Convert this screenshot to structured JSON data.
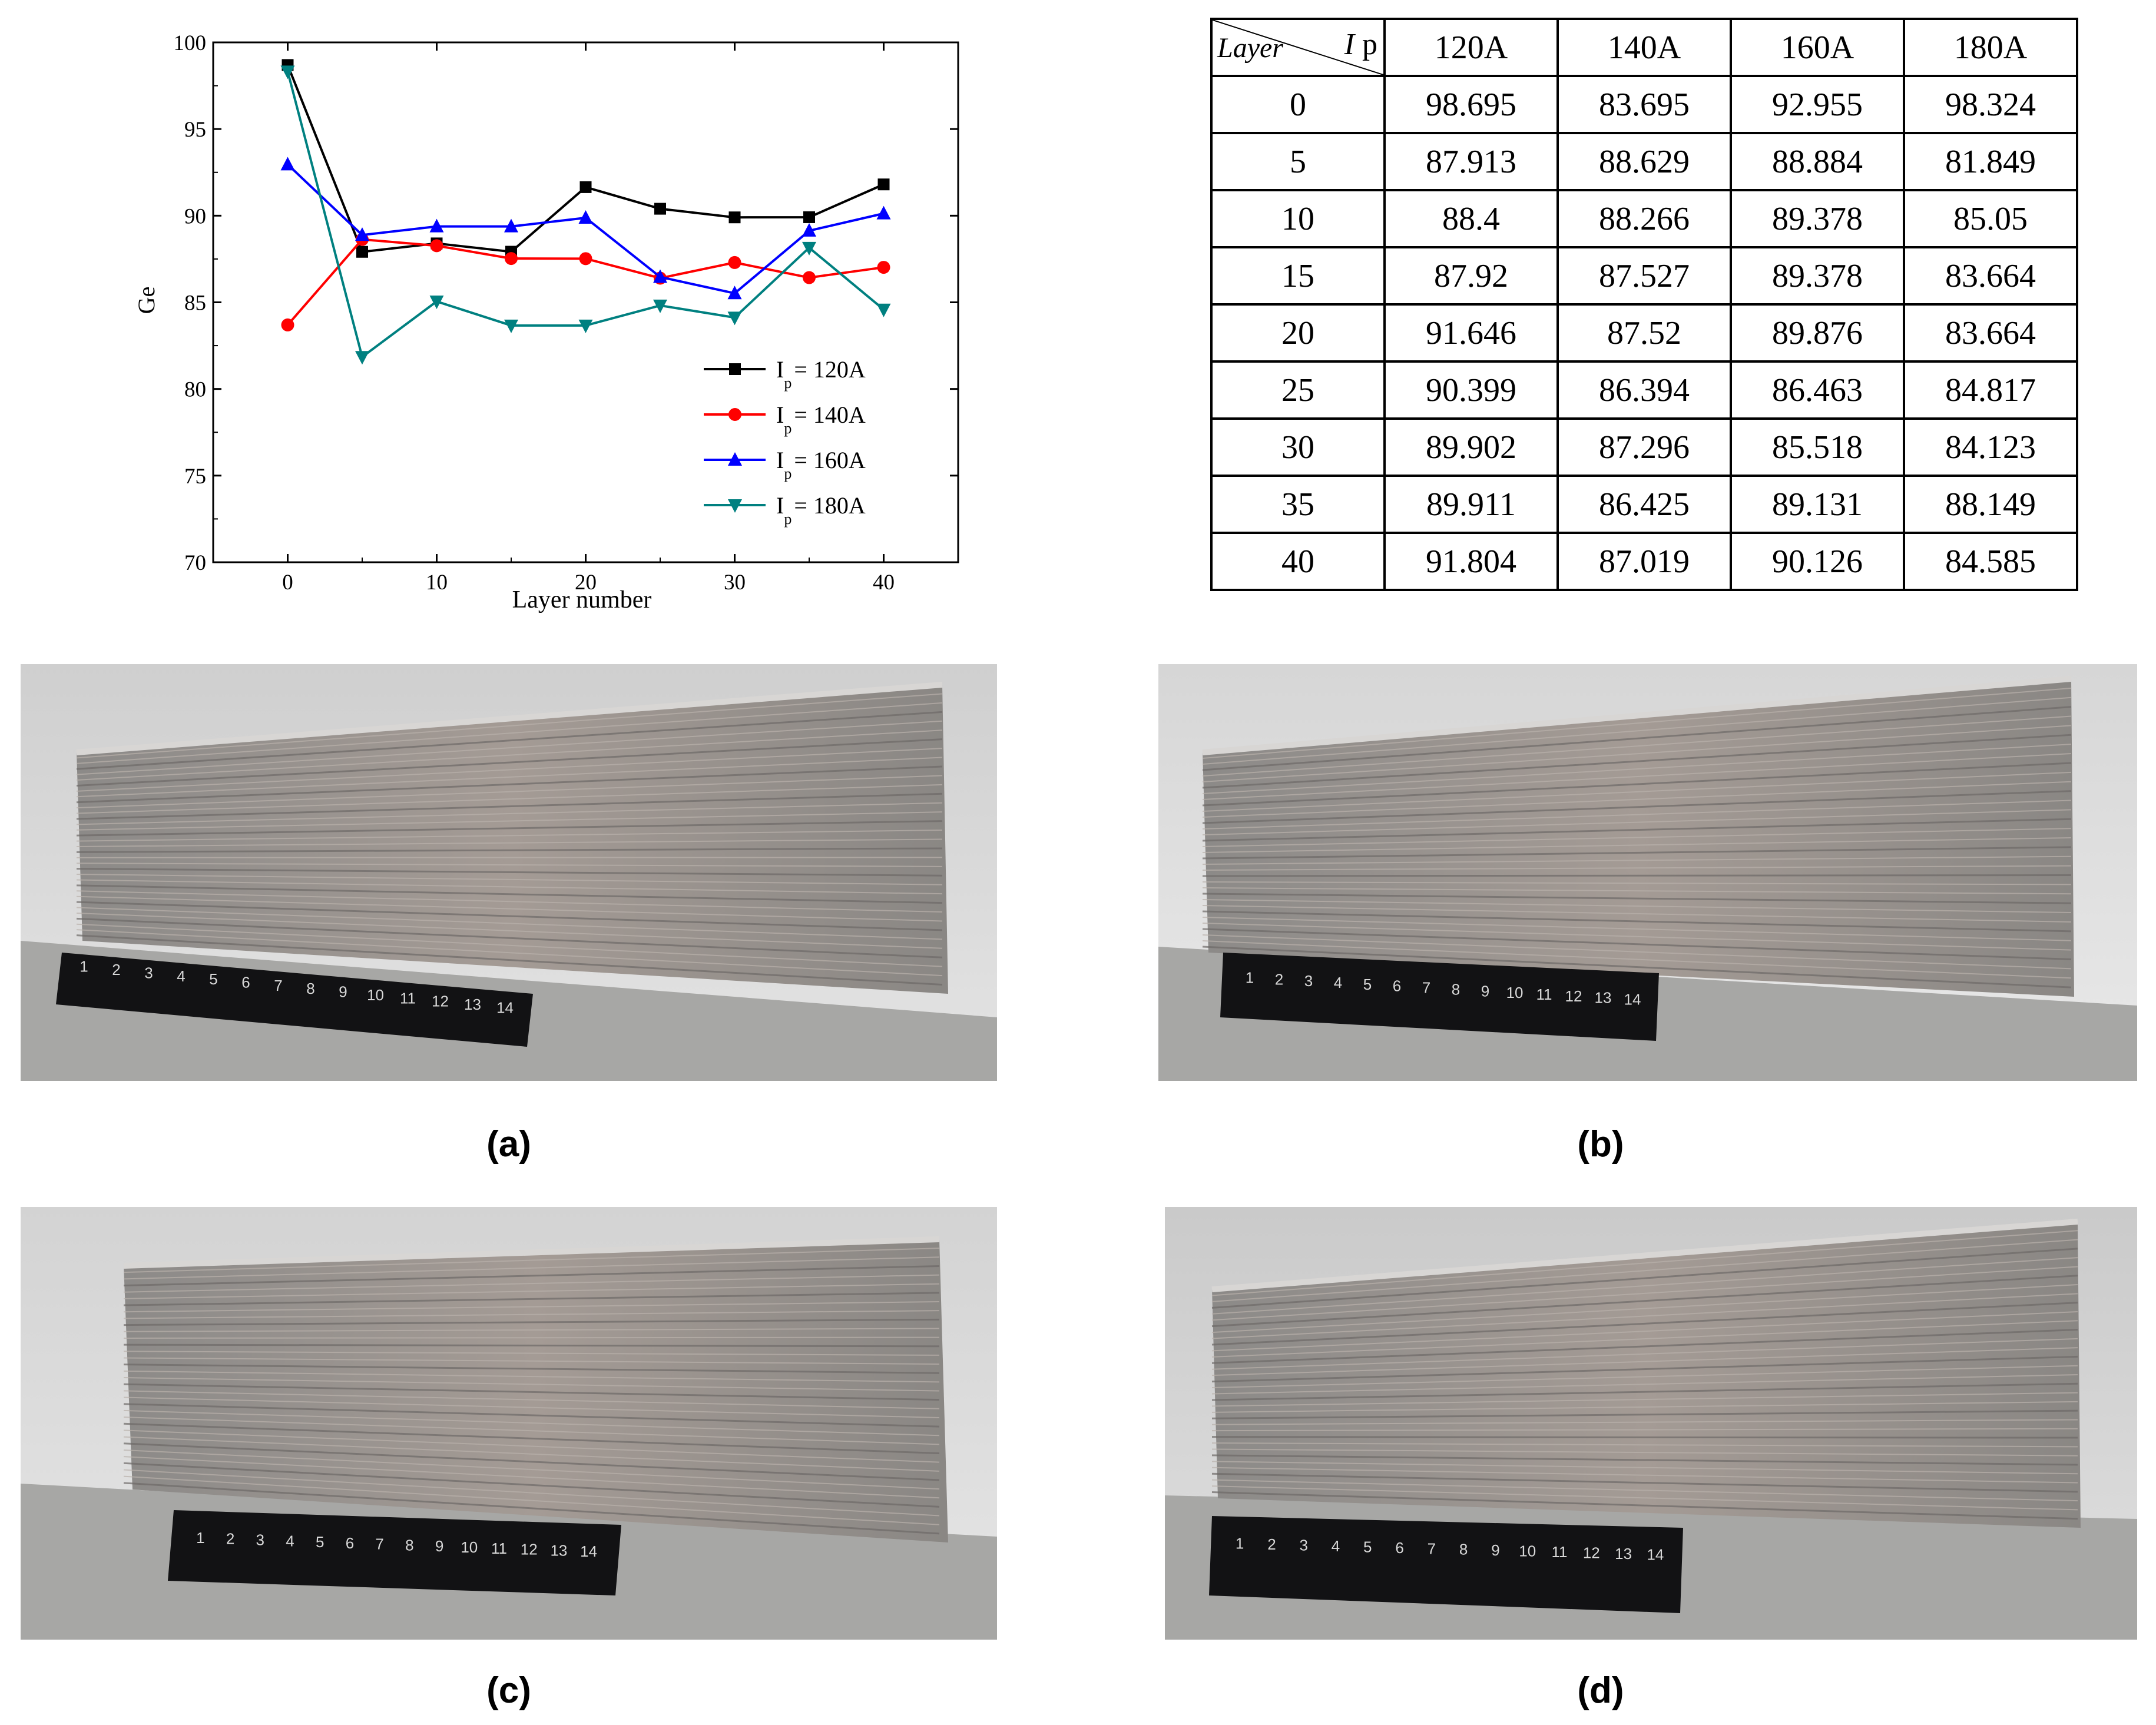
{
  "chart_data": {
    "type": "line",
    "xlabel": "Layer number",
    "ylabel": "Ge",
    "xlim": [
      -5,
      45
    ],
    "ylim": [
      70,
      100
    ],
    "xticks": [
      0,
      10,
      20,
      30,
      40
    ],
    "yticks": [
      70,
      75,
      80,
      85,
      90,
      95,
      100
    ],
    "x": [
      0,
      5,
      10,
      15,
      20,
      25,
      30,
      35,
      40
    ],
    "legend_position": "lower-right",
    "series": [
      {
        "name": "I_p = 120A",
        "legend_main": "I",
        "legend_sub": "p",
        "legend_rest": "= 120A",
        "color": "#000000",
        "marker": "square",
        "values": [
          98.695,
          87.913,
          88.4,
          87.92,
          91.646,
          90.399,
          89.902,
          89.911,
          91.804
        ]
      },
      {
        "name": "I_p = 140A",
        "legend_main": "I",
        "legend_sub": "p",
        "legend_rest": "= 140A",
        "color": "#ff0000",
        "marker": "circle",
        "values": [
          83.695,
          88.629,
          88.266,
          87.527,
          87.52,
          86.394,
          87.296,
          86.425,
          87.019
        ]
      },
      {
        "name": "I_p = 160A",
        "legend_main": "I",
        "legend_sub": "p",
        "legend_rest": "= 160A",
        "color": "#0000ff",
        "marker": "triangle-up",
        "values": [
          92.955,
          88.884,
          89.378,
          89.378,
          89.876,
          86.463,
          85.518,
          89.131,
          90.126
        ]
      },
      {
        "name": "I_p = 180A",
        "legend_main": "I",
        "legend_sub": "p",
        "legend_rest": "= 180A",
        "color": "#008080",
        "marker": "triangle-down",
        "values": [
          98.324,
          81.849,
          85.05,
          83.664,
          83.664,
          84.817,
          84.123,
          88.149,
          84.585
        ]
      }
    ]
  },
  "table": {
    "corner_row_label": "Layer",
    "corner_col_label_italic": "I",
    "corner_col_label_rest": "p",
    "columns": [
      "120A",
      "140A",
      "160A",
      "180A"
    ],
    "rows": [
      {
        "layer": "0",
        "values": [
          "98.695",
          "83.695",
          "92.955",
          "98.324"
        ]
      },
      {
        "layer": "5",
        "values": [
          "87.913",
          "88.629",
          "88.884",
          "81.849"
        ]
      },
      {
        "layer": "10",
        "values": [
          "88.4",
          "88.266",
          "89.378",
          "85.05"
        ]
      },
      {
        "layer": "15",
        "values": [
          "87.92",
          "87.527",
          "89.378",
          "83.664"
        ]
      },
      {
        "layer": "20",
        "values": [
          "91.646",
          "87.52",
          "89.876",
          "83.664"
        ]
      },
      {
        "layer": "25",
        "values": [
          "90.399",
          "86.394",
          "86.463",
          "84.817"
        ]
      },
      {
        "layer": "30",
        "values": [
          "89.902",
          "87.296",
          "85.518",
          "84.123"
        ]
      },
      {
        "layer": "35",
        "values": [
          "89.911",
          "86.425",
          "89.131",
          "88.149"
        ]
      },
      {
        "layer": "40",
        "values": [
          "91.804",
          "87.019",
          "90.126",
          "84.585"
        ]
      }
    ]
  },
  "figures": {
    "ruler_numbers": [
      "1",
      "2",
      "3",
      "4",
      "5",
      "6",
      "7",
      "8",
      "9",
      "10",
      "11",
      "12",
      "13",
      "14"
    ],
    "captions": [
      "(a)",
      "(b)",
      "(c)",
      "(d)"
    ]
  }
}
